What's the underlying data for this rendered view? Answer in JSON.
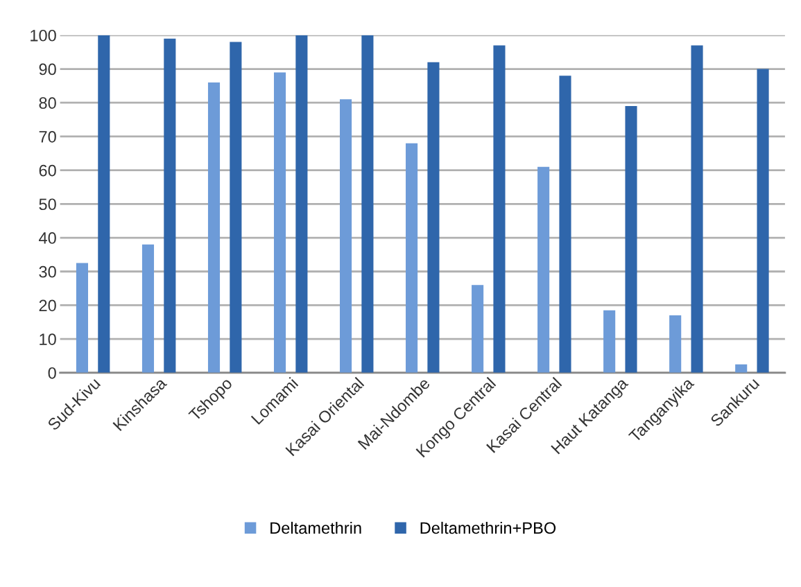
{
  "chart_data": {
    "type": "bar",
    "categories": [
      "Sud-Kivu",
      "Kinshasa",
      "Tshopo",
      "Lomami",
      "Kasai Oriental",
      "Mai-Ndombe",
      "Kongo Central",
      "Kasai Central",
      "Haut Katanga",
      "Tanganyika",
      "Sankuru"
    ],
    "series": [
      {
        "name": "Deltamethrin",
        "color": "#6d9bd8",
        "values": [
          32.5,
          38,
          86,
          89,
          81,
          68,
          26,
          61,
          18.5,
          17,
          2.5
        ]
      },
      {
        "name": "Deltamethrin+PBO",
        "color": "#2f66ab",
        "values": [
          100,
          99,
          98,
          100,
          100,
          92,
          97,
          88,
          79,
          97,
          90
        ]
      }
    ],
    "ylim": [
      0,
      100
    ],
    "yticks": [
      0,
      10,
      20,
      30,
      40,
      50,
      60,
      70,
      80,
      90,
      100
    ],
    "grid": "y",
    "legend": "bottom"
  }
}
